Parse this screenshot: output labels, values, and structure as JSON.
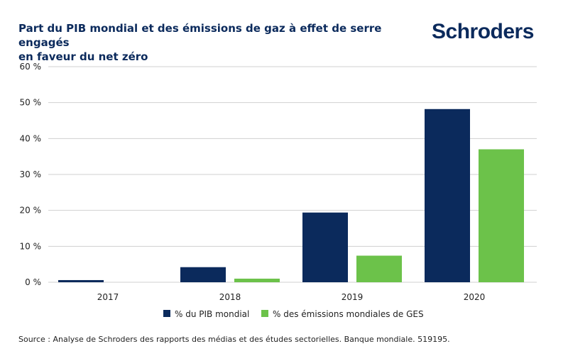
{
  "header": {
    "title_line1": "Part du PIB mondial et des émissions de gaz à effet de serre engagés",
    "title_line2": "en faveur du net zéro",
    "logo_text": "Schroders"
  },
  "footer": {
    "source": "Source : Analyse de Schroders des rapports des médias et des études sectorielles. Banque mondiale. 519195."
  },
  "colors": {
    "series_1": "#0b2a5c",
    "series_2": "#6cc24a",
    "grid": "#d0d0d0",
    "axis_text": "#222222",
    "brand": "#0b2a5c"
  },
  "chart_data": {
    "type": "bar",
    "categories": [
      "2017",
      "2018",
      "2019",
      "2020"
    ],
    "series": [
      {
        "name": "% du PIB mondial",
        "values": [
          0.6,
          4.2,
          19.4,
          48.2
        ]
      },
      {
        "name": "% des émissions mondiales de GES",
        "values": [
          0.0,
          1.0,
          7.4,
          37.0
        ]
      }
    ],
    "ylim": [
      0,
      60
    ],
    "yticks": [
      0,
      10,
      20,
      30,
      40,
      50,
      60
    ],
    "ytick_labels": [
      "0 %",
      "10 %",
      "20 %",
      "30 %",
      "40 %",
      "50 %",
      "60 %"
    ],
    "grid": true,
    "legend_position": "bottom"
  }
}
